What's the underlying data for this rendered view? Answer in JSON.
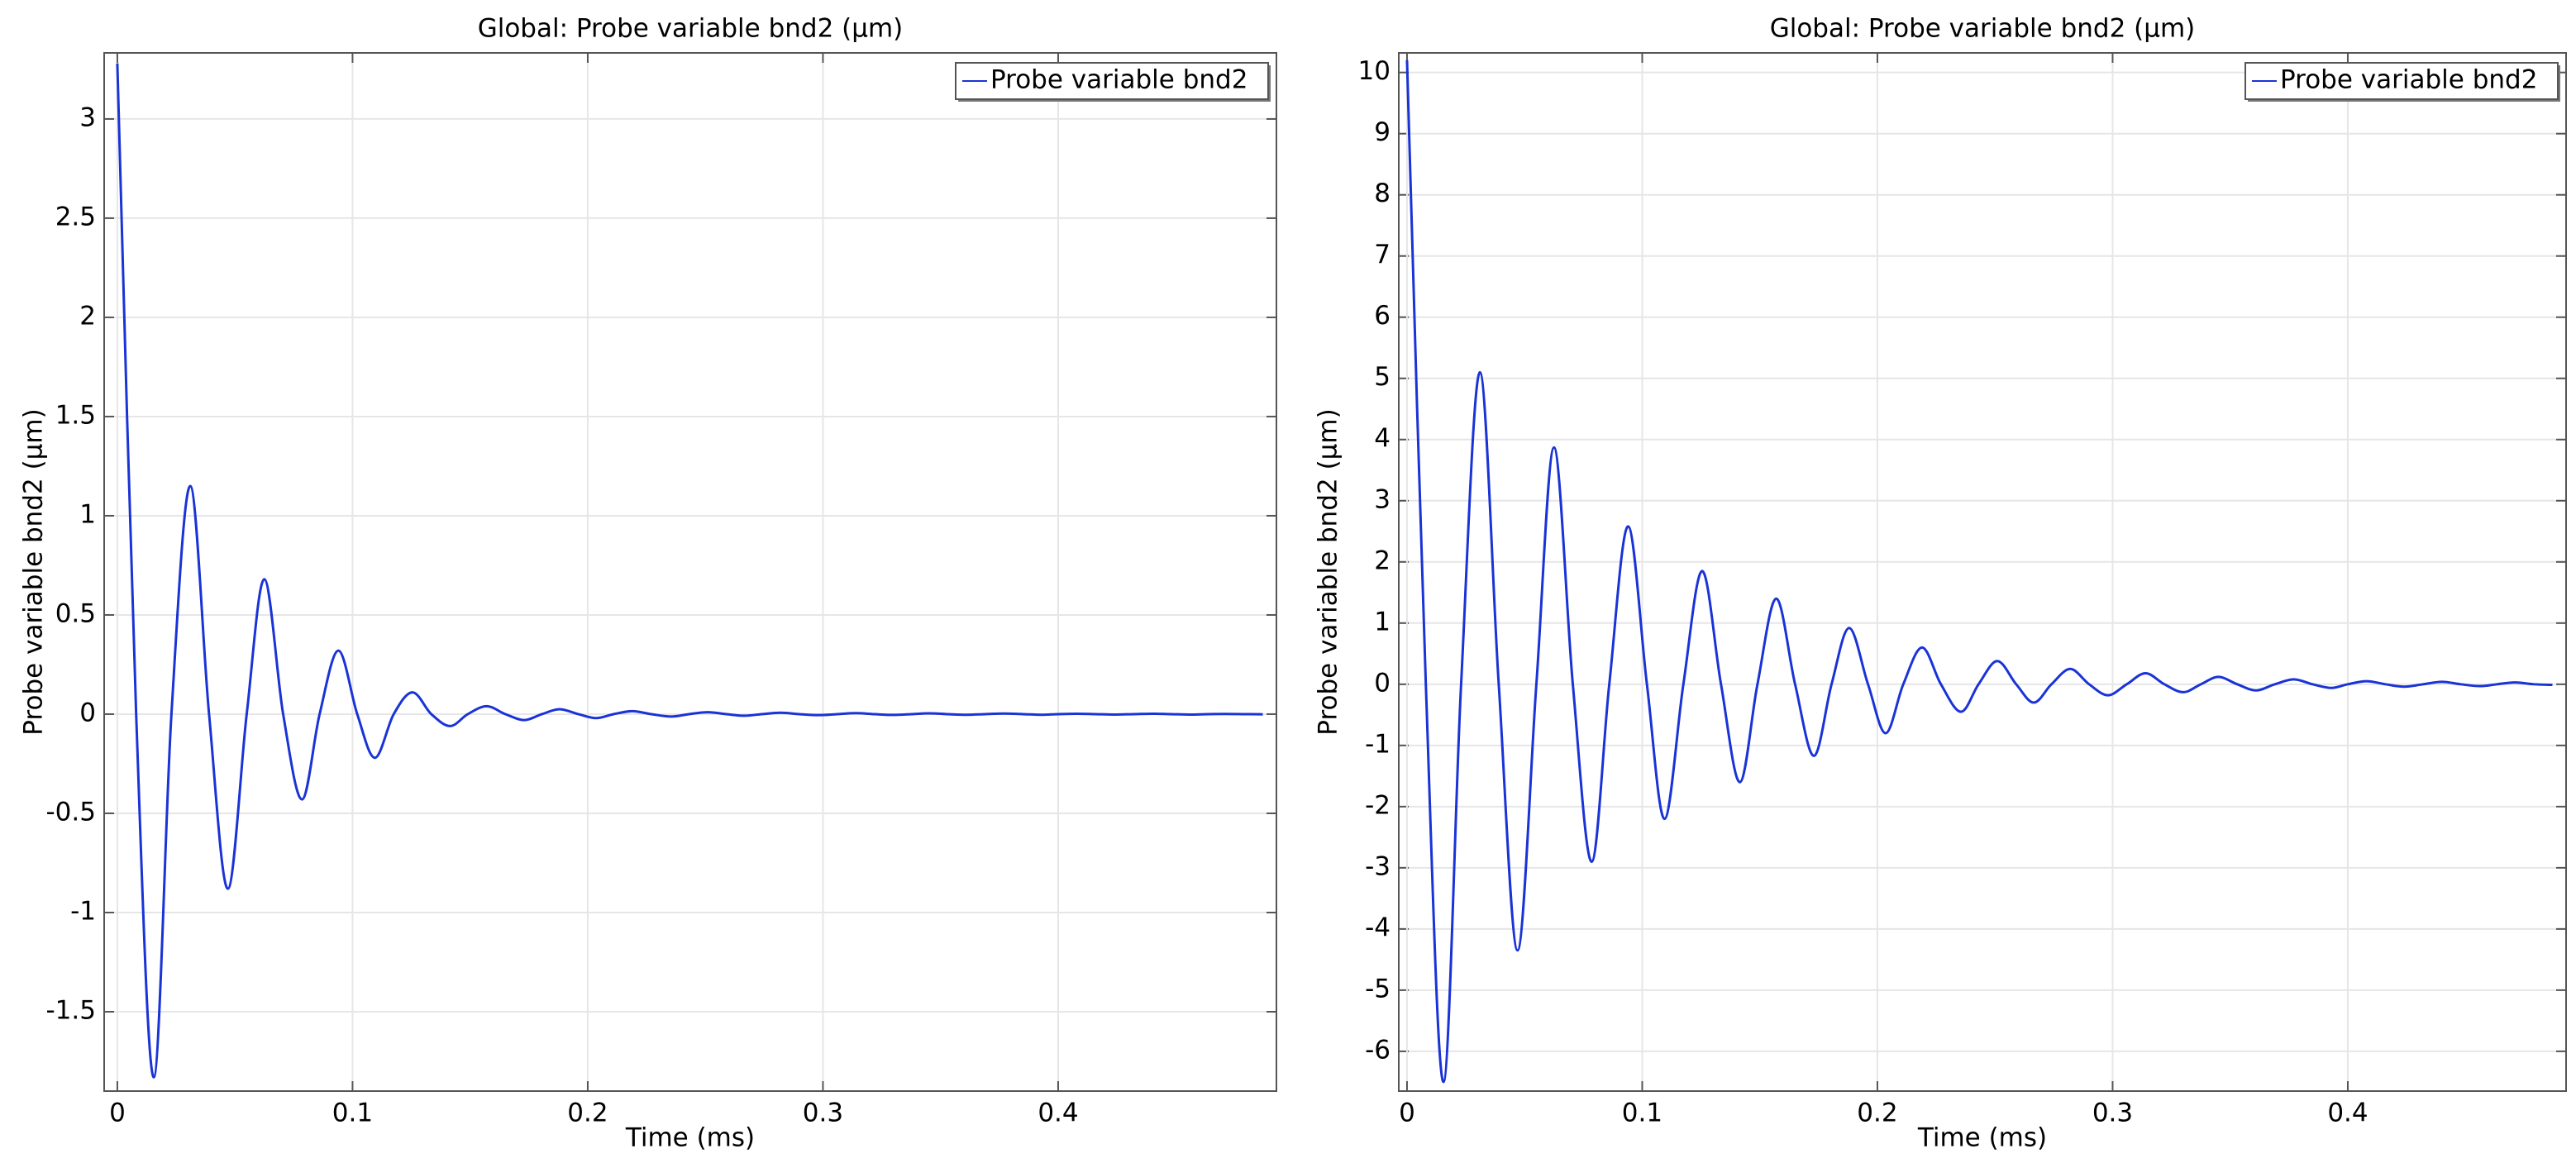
{
  "chart_data": [
    {
      "type": "line",
      "title": "Global: Probe variable bnd2 (µm)",
      "x_label": "Time (ms)",
      "y_label": "Probe variable bnd2 (µm)",
      "x": [
        0,
        0.008,
        0.0155,
        0.023,
        0.031,
        0.039,
        0.047,
        0.055,
        0.0625,
        0.0705,
        0.0785,
        0.086,
        0.094,
        0.102,
        0.1095,
        0.1175,
        0.1255,
        0.1335,
        0.1415,
        0.149,
        0.157,
        0.165,
        0.173,
        0.1805,
        0.188,
        0.196,
        0.2035,
        0.211,
        0.219,
        0.227,
        0.2355,
        0.243,
        0.251,
        0.259,
        0.2665,
        0.274,
        0.282,
        0.29,
        0.298,
        0.306,
        0.314,
        0.322,
        0.33,
        0.3375,
        0.345,
        0.353,
        0.361,
        0.369,
        0.377,
        0.385,
        0.393,
        0.4,
        0.408,
        0.416,
        0.424,
        0.432,
        0.44,
        0.448,
        0.456,
        0.4635,
        0.471,
        0.479,
        0.487
      ],
      "series": [
        {
          "name": "Probe variable bnd2",
          "color": "#1a33d6",
          "values": [
            3.28,
            0,
            -1.83,
            0,
            1.15,
            0,
            -0.88,
            0,
            0.68,
            0,
            -0.43,
            0,
            0.32,
            0,
            -0.22,
            0,
            0.11,
            0,
            -0.06,
            0,
            0.04,
            0,
            -0.03,
            0,
            0.025,
            0,
            -0.02,
            0,
            0.015,
            0,
            -0.012,
            0,
            0.01,
            0,
            -0.008,
            0,
            0.007,
            0,
            -0.005,
            0,
            0.005,
            0,
            -0.004,
            0,
            0.004,
            0,
            -0.003,
            0,
            0.003,
            0,
            -0.003,
            0,
            0.002,
            0,
            -0.002,
            0,
            0.002,
            0,
            -0.002,
            0,
            0.001,
            0,
            -0.001
          ]
        }
      ],
      "xlim": [
        -0.0056,
        0.4928
      ],
      "xticks": [
        0,
        0.1,
        0.2,
        0.3,
        0.4
      ],
      "ylim": [
        -1.9,
        3.333
      ],
      "yticks": [
        -1.5,
        -1,
        -0.5,
        0,
        0.5,
        1,
        1.5,
        2,
        2.5,
        3
      ],
      "grid": true,
      "legend": "upper-right"
    },
    {
      "type": "line",
      "title": "Global: Probe variable bnd2 (µm)",
      "x_label": "Time (ms)",
      "y_label": "Probe variable bnd2 (µm)",
      "x": [
        0,
        0.008,
        0.0155,
        0.023,
        0.031,
        0.039,
        0.047,
        0.055,
        0.0625,
        0.0705,
        0.0785,
        0.086,
        0.094,
        0.102,
        0.1095,
        0.1175,
        0.1255,
        0.1335,
        0.1415,
        0.149,
        0.157,
        0.165,
        0.173,
        0.1805,
        0.188,
        0.196,
        0.2035,
        0.211,
        0.219,
        0.227,
        0.2355,
        0.243,
        0.251,
        0.259,
        0.2665,
        0.274,
        0.282,
        0.29,
        0.298,
        0.306,
        0.314,
        0.322,
        0.33,
        0.3375,
        0.345,
        0.353,
        0.361,
        0.369,
        0.377,
        0.385,
        0.393,
        0.4,
        0.408,
        0.416,
        0.424,
        0.432,
        0.44,
        0.448,
        0.456,
        0.4635,
        0.471,
        0.479,
        0.487
      ],
      "series": [
        {
          "name": "Probe variable bnd2",
          "color": "#1a33d6",
          "values": [
            10.2,
            0,
            -6.5,
            0,
            5.1,
            0,
            -4.35,
            0,
            3.87,
            0,
            -2.9,
            0,
            2.58,
            0,
            -2.2,
            0,
            1.85,
            0,
            -1.6,
            0,
            1.4,
            0,
            -1.17,
            0,
            0.92,
            0,
            -0.8,
            0,
            0.6,
            0,
            -0.45,
            0,
            0.38,
            0,
            -0.3,
            0,
            0.25,
            0,
            -0.18,
            0,
            0.18,
            0,
            -0.13,
            0,
            0.12,
            0,
            -0.1,
            0,
            0.08,
            0,
            -0.06,
            0,
            0.05,
            0,
            -0.04,
            0,
            0.04,
            0,
            -0.03,
            0,
            0.03,
            0,
            -0.01
          ]
        }
      ],
      "xlim": [
        -0.0035,
        0.4928
      ],
      "xticks": [
        0,
        0.1,
        0.2,
        0.3,
        0.4
      ],
      "ylim": [
        -6.65,
        10.32
      ],
      "yticks": [
        -6,
        -5,
        -4,
        -3,
        -2,
        -1,
        0,
        1,
        2,
        3,
        4,
        5,
        6,
        7,
        8,
        9,
        10
      ],
      "grid": true,
      "legend": "upper-right"
    }
  ]
}
